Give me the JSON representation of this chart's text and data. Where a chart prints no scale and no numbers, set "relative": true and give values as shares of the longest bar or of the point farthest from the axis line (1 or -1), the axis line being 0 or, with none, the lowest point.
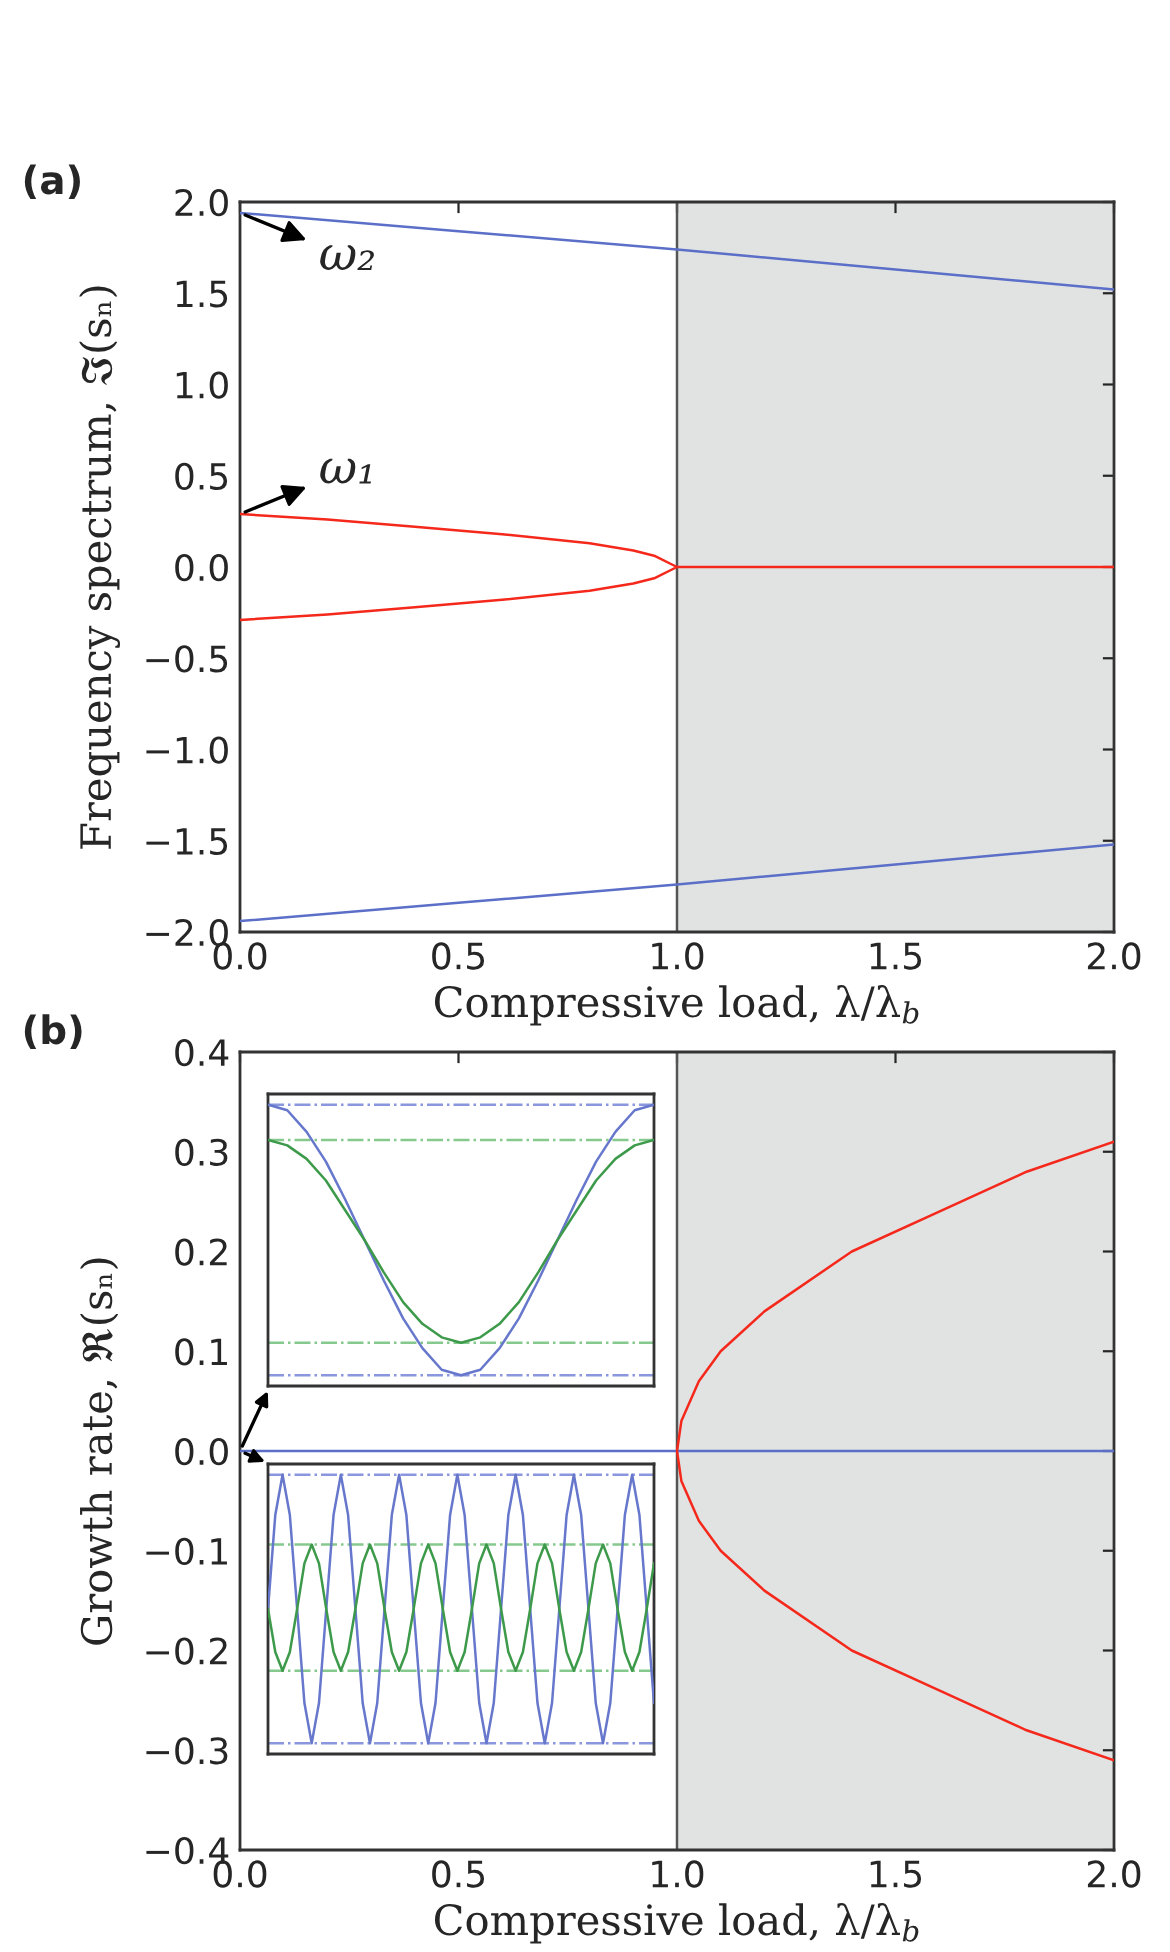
{
  "chart_data": [
    {
      "type": "line",
      "title": "(a)",
      "xlabel": "Compressive load, λ/λ$_{b}$",
      "ylabel": "Frequency spectrum, ℑ(sₙ)",
      "xlim": [
        0,
        2
      ],
      "xticks": [
        {
          "value": 0,
          "label": "0.0"
        },
        {
          "value": 0.5,
          "label": "0.5"
        },
        {
          "value": 1,
          "label": "1.0"
        },
        {
          "value": 1.5,
          "label": "1.5"
        },
        {
          "value": 2,
          "label": "2.0"
        }
      ],
      "ylim": [
        -2,
        2
      ],
      "yticks": [
        {
          "value": -2,
          "label": "−2.0"
        },
        {
          "value": -1.5,
          "label": "−1.5"
        },
        {
          "value": -1,
          "label": "−1.0"
        },
        {
          "value": -0.5,
          "label": "−0.5"
        },
        {
          "value": 0,
          "label": "0.0"
        },
        {
          "value": 0.5,
          "label": "0.5"
        },
        {
          "value": 1,
          "label": "1.0"
        },
        {
          "value": 1.5,
          "label": "1.5"
        },
        {
          "value": 2,
          "label": "2.0"
        }
      ],
      "grid": false,
      "series": [
        {
          "color": "#5b6fc8",
          "x": [
            0,
            0.5,
            1,
            1.5,
            2
          ],
          "values": [
            1.94,
            1.84,
            1.74,
            1.63,
            1.52
          ]
        },
        {
          "color": "#5b6fc8",
          "x": [
            0,
            0.5,
            1,
            1.5,
            2
          ],
          "values": [
            -1.94,
            -1.84,
            -1.74,
            -1.63,
            -1.52
          ]
        },
        {
          "color": "#f5281c",
          "x": [
            0,
            0.2,
            0.4,
            0.6,
            0.8,
            0.9,
            0.95,
            1,
            0.95,
            0.9,
            0.8,
            0.6,
            0.4,
            0.2,
            0
          ],
          "values": [
            0.29,
            0.26,
            0.22,
            0.18,
            0.13,
            0.09,
            0.06,
            0,
            -0.06,
            -0.09,
            -0.13,
            -0.18,
            -0.22,
            -0.26,
            -0.29
          ]
        },
        {
          "color": "#f5281c",
          "x": [
            1,
            2
          ],
          "values": [
            0,
            0
          ]
        }
      ],
      "bands": [
        {
          "axis": "x",
          "from": 1,
          "to": 2,
          "color": "#e1e3e3"
        }
      ],
      "ref_lines": [
        {
          "axis": "x",
          "value": 1,
          "color": "#555555",
          "line_style": "solid"
        }
      ],
      "annotations": [
        {
          "text": "ω₂",
          "x": 0,
          "y": 1.94
        },
        {
          "text": "ω₁",
          "x": 0,
          "y": 0.29
        }
      ]
    },
    {
      "type": "line",
      "title": "(b)",
      "xlabel": "Compressive load, λ/λ$_{b}$",
      "ylabel": "Growth rate, ℜ(sₙ)",
      "xlim": [
        0,
        2
      ],
      "xticks": [
        {
          "value": 0,
          "label": "0.0"
        },
        {
          "value": 0.5,
          "label": "0.5"
        },
        {
          "value": 1,
          "label": "1.0"
        },
        {
          "value": 1.5,
          "label": "1.5"
        },
        {
          "value": 2,
          "label": "2.0"
        }
      ],
      "ylim": [
        -0.4,
        0.4
      ],
      "yticks": [
        {
          "value": -0.4,
          "label": "−0.4"
        },
        {
          "value": -0.3,
          "label": "−0.3"
        },
        {
          "value": -0.2,
          "label": "−0.2"
        },
        {
          "value": -0.1,
          "label": "−0.1"
        },
        {
          "value": 0,
          "label": "0.0"
        },
        {
          "value": 0.1,
          "label": "0.1"
        },
        {
          "value": 0.2,
          "label": "0.2"
        },
        {
          "value": 0.3,
          "label": "0.3"
        },
        {
          "value": 0.4,
          "label": "0.4"
        }
      ],
      "grid": false,
      "series": [
        {
          "color": "#5b6fc8",
          "x": [
            0,
            2
          ],
          "values": [
            0,
            0
          ]
        },
        {
          "color": "#f5281c",
          "x": [
            2,
            1.8,
            1.6,
            1.4,
            1.2,
            1.1,
            1.05,
            1.01,
            1,
            1.01,
            1.05,
            1.1,
            1.2,
            1.4,
            1.6,
            1.8,
            2
          ],
          "values": [
            0.31,
            0.28,
            0.24,
            0.2,
            0.14,
            0.1,
            0.07,
            0.03,
            0,
            -0.03,
            -0.07,
            -0.1,
            -0.14,
            -0.2,
            -0.24,
            -0.28,
            -0.31
          ]
        }
      ],
      "bands": [
        {
          "axis": "x",
          "from": 1,
          "to": 2,
          "color": "#e1e3e3"
        }
      ],
      "ref_lines": [
        {
          "axis": "x",
          "value": 1,
          "color": "#555555",
          "line_style": "solid"
        }
      ]
    },
    {
      "type": "line",
      "relative": true,
      "categories": [
        null,
        null,
        null,
        null,
        null,
        null,
        null,
        null,
        null,
        null,
        null,
        null,
        null,
        null,
        null,
        null,
        null,
        null,
        null,
        null,
        null
      ],
      "series": [
        {
          "color": "#6677cc",
          "values": [
            1,
            0.98,
            0.9,
            0.79,
            0.65,
            0.5,
            0.35,
            0.21,
            0.1,
            0.02,
            0,
            0.02,
            0.1,
            0.21,
            0.35,
            0.5,
            0.65,
            0.79,
            0.9,
            0.98,
            1
          ]
        },
        {
          "color": "#3d9a4a",
          "values": [
            0.87,
            0.85,
            0.8,
            0.72,
            0.61,
            0.5,
            0.38,
            0.27,
            0.19,
            0.14,
            0.12,
            0.14,
            0.19,
            0.27,
            0.38,
            0.5,
            0.61,
            0.72,
            0.8,
            0.85,
            0.87
          ]
        }
      ],
      "ref_lines": [
        {
          "axis": "y",
          "value": 1,
          "color": "#8a96dd",
          "line_style": "dashdot"
        },
        {
          "axis": "y",
          "value": 0,
          "color": "#8a96dd",
          "line_style": "dashdot"
        },
        {
          "axis": "y",
          "value": 0.87,
          "color": "#86c98e",
          "line_style": "dashdot"
        },
        {
          "axis": "y",
          "value": 0.12,
          "color": "#86c98e",
          "line_style": "dashdot"
        }
      ]
    },
    {
      "type": "line",
      "relative": true,
      "categories": [
        null,
        null,
        null,
        null,
        null,
        null,
        null,
        null,
        null,
        null,
        null,
        null,
        null,
        null,
        null,
        null,
        null,
        null,
        null,
        null,
        null,
        null,
        null,
        null,
        null,
        null,
        null,
        null,
        null,
        null,
        null,
        null,
        null,
        null,
        null,
        null,
        null,
        null,
        null,
        null,
        null,
        null,
        null,
        null,
        null,
        null,
        null,
        null,
        null,
        null,
        null,
        null,
        null,
        null
      ],
      "series": [
        {
          "color": "#6677cc",
          "values": [
            0.5,
            0.85,
            1,
            0.85,
            0.5,
            0.15,
            0,
            0.15,
            0.5,
            0.85,
            1,
            0.85,
            0.5,
            0.15,
            0,
            0.15,
            0.5,
            0.85,
            1,
            0.85,
            0.5,
            0.15,
            0,
            0.15,
            0.5,
            0.85,
            1,
            0.85,
            0.5,
            0.15,
            0,
            0.15,
            0.5,
            0.85,
            1,
            0.85,
            0.5,
            0.15,
            0,
            0.15,
            0.5,
            0.85,
            1,
            0.85,
            0.5,
            0.15,
            0,
            0.15,
            0.5,
            0.85,
            1,
            0.85,
            0.5,
            0.15
          ]
        },
        {
          "color": "#3d9a4a",
          "values": [
            0.5,
            0.34,
            0.27,
            0.34,
            0.5,
            0.67,
            0.74,
            0.67,
            0.5,
            0.34,
            0.27,
            0.34,
            0.5,
            0.67,
            0.74,
            0.67,
            0.5,
            0.34,
            0.27,
            0.34,
            0.5,
            0.67,
            0.74,
            0.67,
            0.5,
            0.34,
            0.27,
            0.34,
            0.5,
            0.67,
            0.74,
            0.67,
            0.5,
            0.34,
            0.27,
            0.34,
            0.5,
            0.67,
            0.74,
            0.67,
            0.5,
            0.34,
            0.27,
            0.34,
            0.5,
            0.67,
            0.74,
            0.67,
            0.5,
            0.34,
            0.27,
            0.34,
            0.5,
            0.67
          ]
        }
      ],
      "ref_lines": [
        {
          "axis": "y",
          "value": 1,
          "color": "#8a96dd",
          "line_style": "dashdot"
        },
        {
          "axis": "y",
          "value": 0,
          "color": "#8a96dd",
          "line_style": "dashdot"
        },
        {
          "axis": "y",
          "value": 0.74,
          "color": "#86c98e",
          "line_style": "dashdot"
        },
        {
          "axis": "y",
          "value": 0.27,
          "color": "#86c98e",
          "line_style": "dashdot"
        }
      ]
    }
  ]
}
